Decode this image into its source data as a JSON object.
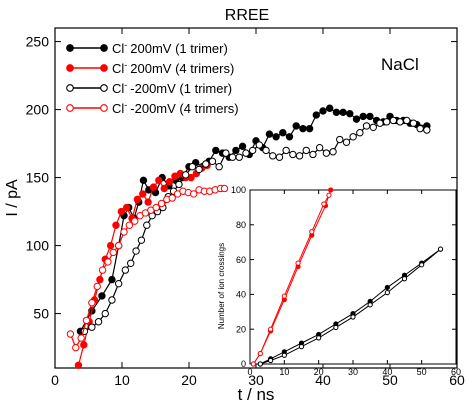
{
  "chart_data": [
    {
      "type": "line",
      "title": "RREE",
      "xlabel": "t / ns",
      "ylabel": "I / pA",
      "annotation": "NaCl",
      "xlim": [
        0,
        60
      ],
      "ylim": [
        10,
        260
      ],
      "x_ticks": [
        0,
        10,
        20,
        30,
        40,
        50,
        60
      ],
      "y_ticks": [
        50,
        100,
        150,
        200,
        250
      ],
      "grid": false,
      "legend_position": "top-left",
      "series": [
        {
          "name": "Cl⁻ 200mV (1 trimer)",
          "ion": "Cl",
          "charge": "-",
          "label_rest": "200mV (1 trimer)",
          "color": "#000000",
          "marker": "filled",
          "x": [
            3.8,
            5.5,
            7,
            8.5,
            9.5,
            10.3,
            11,
            11.8,
            12.5,
            13.2,
            14,
            15,
            16,
            17,
            18,
            19,
            20,
            21,
            22,
            23,
            24,
            25,
            26,
            27,
            28,
            29,
            30,
            31,
            32,
            33,
            34,
            35,
            36,
            37,
            38,
            39,
            40,
            41,
            42,
            43,
            44,
            45,
            46,
            47,
            48,
            49,
            50,
            51,
            52,
            53,
            54,
            55.5
          ],
          "y": [
            37,
            52,
            63,
            75,
            100,
            122,
            128,
            120,
            132,
            148,
            141,
            139,
            150,
            144,
            148,
            150,
            158,
            161,
            158,
            162,
            170,
            168,
            165,
            170,
            173,
            167,
            177,
            172,
            182,
            180,
            183,
            180,
            188,
            186,
            186,
            196,
            199,
            201,
            198,
            198,
            197,
            193,
            195,
            195,
            192,
            191,
            195,
            192,
            192,
            190,
            189,
            188
          ]
        },
        {
          "name": "Cl⁻ 200mV (4 trimers)",
          "ion": "Cl",
          "charge": "-",
          "label_rest": "200mV (4 trimers)",
          "color": "#ff0000",
          "marker": "filled",
          "x": [
            3.5,
            4.3,
            5.1,
            5.9,
            6.7,
            7.5,
            8.3,
            9.1,
            9.9,
            10.7,
            11.5,
            12.3,
            13.1,
            13.9,
            14.7,
            15.5,
            16.3,
            17.1,
            17.9,
            18.7,
            19.5,
            20.3,
            21.1,
            21.9,
            22.7
          ],
          "y": [
            12,
            27,
            44,
            60,
            75,
            90,
            100,
            115,
            125,
            128,
            120,
            134,
            138,
            132,
            143,
            148,
            142,
            147,
            151,
            153,
            150,
            150,
            153,
            157,
            159
          ]
        },
        {
          "name": "Cl⁻ -200mV (1 trimer)",
          "ion": "Cl",
          "charge": "-",
          "label_rest": "-200mV (1 trimer)",
          "color": "#000000",
          "marker": "open",
          "x": [
            4.4,
            5.5,
            6.5,
            7.5,
            8.5,
            9.5,
            10.5,
            11.3,
            12.1,
            12.9,
            13.7,
            14.5,
            15.3,
            16.1,
            16.9,
            17.7,
            18.5,
            19.5,
            20.5,
            21.5,
            22.5,
            23.5,
            24.5,
            25.5,
            26.5,
            27.5,
            28.5,
            29.5,
            30.5,
            31.5,
            32.5,
            33.5,
            34.5,
            35.5,
            36.5,
            37.5,
            38.5,
            39.5,
            40.5,
            41.5,
            42.5,
            43.5,
            44.5,
            45.5,
            46.5,
            47.5,
            48.5,
            49.5,
            50.5,
            51.5,
            52.5,
            53.5,
            54.5,
            55.5
          ],
          "y": [
            37,
            40,
            44,
            50,
            60,
            72,
            82,
            87,
            96,
            104,
            115,
            122,
            125,
            128,
            136,
            140,
            145,
            152,
            158,
            156,
            160,
            162,
            158,
            168,
            165,
            165,
            168,
            170,
            174,
            170,
            166,
            165,
            170,
            167,
            166,
            170,
            167,
            172,
            168,
            169,
            178,
            176,
            180,
            183,
            188,
            187,
            190,
            191,
            192,
            191,
            192,
            190,
            186,
            185
          ]
        },
        {
          "name": "Cl⁻ -200mV (4 trimers)",
          "ion": "Cl",
          "charge": "-",
          "label_rest": "-200mV (4 trimers)",
          "color": "#ff0000",
          "marker": "open",
          "x": [
            2.3,
            3.1,
            3.9,
            4.7,
            5.5,
            6.3,
            7.1,
            7.9,
            8.7,
            9.5,
            10.3,
            11.1,
            11.9,
            12.7,
            13.5,
            14.3,
            15.1,
            15.9,
            16.7,
            17.5,
            18.3,
            19.1,
            19.9,
            20.7,
            21.5,
            22.3,
            23.1,
            23.9,
            24.7,
            25.3
          ],
          "y": [
            35,
            25,
            32,
            45,
            58,
            70,
            82,
            88,
            95,
            100,
            110,
            115,
            118,
            122,
            124,
            126,
            128,
            131,
            134,
            135,
            138,
            140,
            139,
            138,
            141,
            140,
            140,
            141,
            142,
            142
          ]
        }
      ]
    },
    {
      "type": "line",
      "title": "",
      "xlabel": "",
      "ylabel": "Number of ion crossings",
      "xlim": [
        0,
        60
      ],
      "ylim": [
        0,
        100
      ],
      "x_ticks": [
        0,
        10,
        20,
        30,
        40,
        50,
        60
      ],
      "y_ticks": [
        0,
        20,
        40,
        60,
        80,
        100
      ],
      "grid": false,
      "series": [
        {
          "color": "#ff0000",
          "marker": "filled",
          "x": [
            1,
            3,
            6,
            10,
            14,
            18,
            22,
            23.5
          ],
          "y": [
            0,
            6,
            19,
            37,
            56,
            74,
            91,
            100
          ]
        },
        {
          "color": "#ff0000",
          "marker": "open",
          "x": [
            1,
            3,
            6,
            10,
            14,
            18,
            21.5,
            23
          ],
          "y": [
            0,
            6,
            20,
            39,
            58,
            76,
            92,
            97
          ]
        },
        {
          "color": "#000000",
          "marker": "filled",
          "x": [
            3,
            6,
            10,
            15,
            20,
            25,
            30,
            35,
            40,
            45,
            50,
            55.5
          ],
          "y": [
            0,
            3,
            7,
            12,
            17,
            23,
            29,
            36,
            44,
            51,
            58,
            66
          ]
        },
        {
          "color": "#000000",
          "marker": "open",
          "x": [
            3,
            6,
            10,
            15,
            20,
            25,
            30,
            35,
            40,
            45,
            50,
            55.5
          ],
          "y": [
            0,
            2,
            5,
            10,
            15,
            21,
            27,
            34,
            41,
            49,
            57,
            66
          ]
        }
      ]
    }
  ]
}
